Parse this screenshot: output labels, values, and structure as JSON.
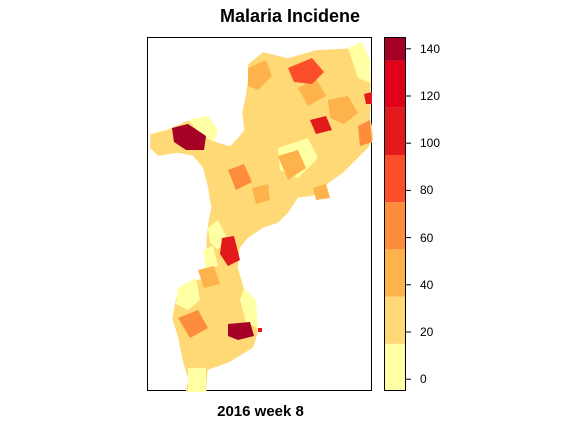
{
  "title": "Malaria Incidene",
  "subtitle": "2016 week 8",
  "legend": {
    "min": -5,
    "max": 145,
    "breaks": [
      -5,
      15,
      35,
      55,
      75,
      95,
      115,
      135,
      145
    ],
    "colors": [
      "#FFFFA4",
      "#FED976",
      "#FEB24C",
      "#FD8D3C",
      "#FC4E2A",
      "#E31A1C",
      "#E0001A",
      "#A50026"
    ],
    "tick_labels": [
      "0",
      "20",
      "40",
      "60",
      "80",
      "100",
      "120",
      "140"
    ],
    "tick_values": [
      0,
      20,
      40,
      60,
      80,
      100,
      120,
      140
    ]
  }
}
